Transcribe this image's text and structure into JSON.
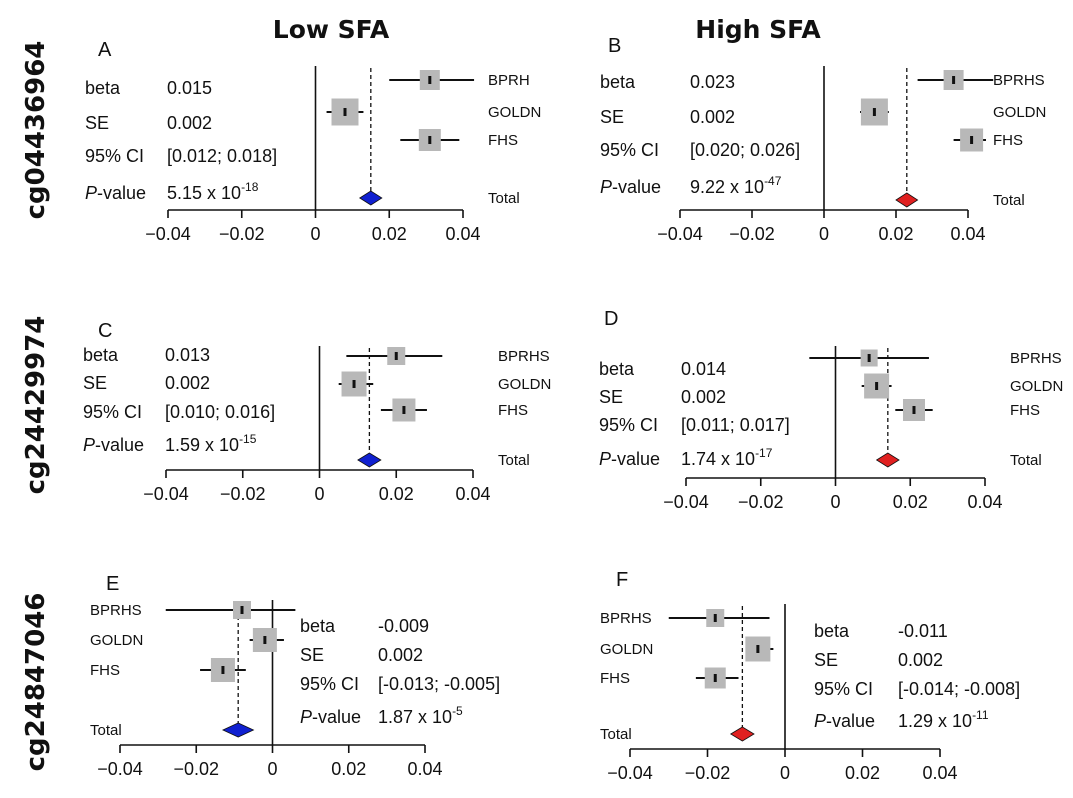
{
  "column_titles": [
    "Low SFA",
    "High SFA"
  ],
  "row_labels": [
    "cg04436964",
    "cg24429974",
    "cg24847046"
  ],
  "stat_labels": {
    "beta": "beta",
    "se": "SE",
    "ci": "95% CI",
    "p_italic": "P",
    "p_rest": "-value"
  },
  "colors": {
    "low_sfa_diamond": "#1020d0",
    "high_sfa_diamond": "#e02020",
    "study_box": "#b8b8b8"
  },
  "chart_data": [
    {
      "type": "forest",
      "panel": "A",
      "condition": "Low SFA",
      "cpg": "cg04436964",
      "xlim": [
        -0.04,
        0.04
      ],
      "xticks": [
        -0.04,
        -0.02,
        0,
        0.02,
        0.04
      ],
      "tick_labels": [
        "−0.04",
        "−0.02",
        "0",
        "0.02",
        "0.04"
      ],
      "studies": [
        {
          "name": "BPRH",
          "est": 0.031,
          "lo": 0.02,
          "hi": 0.043,
          "weight": 0.8
        },
        {
          "name": "GOLDN",
          "est": 0.008,
          "lo": 0.003,
          "hi": 0.013,
          "weight": 1.5
        },
        {
          "name": "FHS",
          "est": 0.031,
          "lo": 0.023,
          "hi": 0.039,
          "weight": 1.0
        }
      ],
      "total": {
        "name": "Total",
        "est": 0.015,
        "lo": 0.012,
        "hi": 0.018
      },
      "stats": {
        "beta": "0.015",
        "se": "0.002",
        "ci": "[0.012; 0.018]",
        "p_base": "5.15 x 10",
        "p_exp": "-18"
      }
    },
    {
      "type": "forest",
      "panel": "B",
      "condition": "High SFA",
      "cpg": "cg04436964",
      "xlim": [
        -0.04,
        0.04
      ],
      "xticks": [
        -0.04,
        -0.02,
        0,
        0.02,
        0.04
      ],
      "tick_labels": [
        "−0.04",
        "−0.02",
        "0",
        "0.02",
        "0.04"
      ],
      "studies": [
        {
          "name": "BPRHS",
          "est": 0.036,
          "lo": 0.026,
          "hi": 0.047,
          "weight": 0.8
        },
        {
          "name": "GOLDN",
          "est": 0.014,
          "lo": 0.01,
          "hi": 0.018,
          "weight": 1.5
        },
        {
          "name": "FHS",
          "est": 0.041,
          "lo": 0.036,
          "hi": 0.045,
          "weight": 1.1
        }
      ],
      "total": {
        "name": "Total",
        "est": 0.023,
        "lo": 0.02,
        "hi": 0.026
      },
      "stats": {
        "beta": "0.023",
        "se": "0.002",
        "ci": "[0.020; 0.026]",
        "p_base": "9.22 x 10",
        "p_exp": "-47"
      }
    },
    {
      "type": "forest",
      "panel": "C",
      "condition": "Low SFA",
      "cpg": "cg24429974",
      "xlim": [
        -0.04,
        0.04
      ],
      "xticks": [
        -0.04,
        -0.02,
        0,
        0.02,
        0.04
      ],
      "tick_labels": [
        "−0.04",
        "−0.02",
        "0",
        "0.02",
        "0.04"
      ],
      "studies": [
        {
          "name": "BPRHS",
          "est": 0.02,
          "lo": 0.007,
          "hi": 0.032,
          "weight": 0.6
        },
        {
          "name": "GOLDN",
          "est": 0.009,
          "lo": 0.005,
          "hi": 0.014,
          "weight": 1.3
        },
        {
          "name": "FHS",
          "est": 0.022,
          "lo": 0.016,
          "hi": 0.028,
          "weight": 1.1
        }
      ],
      "total": {
        "name": "Total",
        "est": 0.013,
        "lo": 0.01,
        "hi": 0.016
      },
      "stats": {
        "beta": "0.013",
        "se": "0.002",
        "ci": "[0.010; 0.016]",
        "p_base": "1.59 x 10",
        "p_exp": "-15"
      }
    },
    {
      "type": "forest",
      "panel": "D",
      "condition": "High SFA",
      "cpg": "cg24429974",
      "xlim": [
        -0.04,
        0.04
      ],
      "xticks": [
        -0.04,
        -0.02,
        0,
        0.02,
        0.04
      ],
      "tick_labels": [
        "−0.04",
        "−0.02",
        "0",
        "0.02",
        "0.04"
      ],
      "studies": [
        {
          "name": "BPRHS",
          "est": 0.009,
          "lo": -0.007,
          "hi": 0.025,
          "weight": 0.5
        },
        {
          "name": "GOLDN",
          "est": 0.011,
          "lo": 0.007,
          "hi": 0.015,
          "weight": 1.3
        },
        {
          "name": "FHS",
          "est": 0.021,
          "lo": 0.016,
          "hi": 0.026,
          "weight": 1.0
        }
      ],
      "total": {
        "name": "Total",
        "est": 0.014,
        "lo": 0.011,
        "hi": 0.017
      },
      "stats": {
        "beta": "0.014",
        "se": "0.002",
        "ci": "[0.011; 0.017]",
        "p_base": "1.74 x 10",
        "p_exp": "-17"
      }
    },
    {
      "type": "forest",
      "panel": "E",
      "condition": "Low SFA",
      "cpg": "cg24847046",
      "xlim": [
        -0.04,
        0.04
      ],
      "xticks": [
        -0.04,
        -0.02,
        0,
        0.02,
        0.04
      ],
      "tick_labels": [
        "−0.04",
        "−0.02",
        "0",
        "0.02",
        "0.04"
      ],
      "studies": [
        {
          "name": "BPRHS",
          "est": -0.008,
          "lo": -0.028,
          "hi": 0.006,
          "weight": 0.6
        },
        {
          "name": "GOLDN",
          "est": -0.002,
          "lo": -0.006,
          "hi": 0.003,
          "weight": 1.2
        },
        {
          "name": "FHS",
          "est": -0.013,
          "lo": -0.019,
          "hi": -0.007,
          "weight": 1.2
        }
      ],
      "total": {
        "name": "Total",
        "est": -0.009,
        "lo": -0.013,
        "hi": -0.005
      },
      "stats": {
        "beta": "-0.009",
        "se": "0.002",
        "ci": "[-0.013; -0.005]",
        "p_base": "1.87 x 10",
        "p_exp": "-5"
      }
    },
    {
      "type": "forest",
      "panel": "F",
      "condition": "High SFA",
      "cpg": "cg24847046",
      "xlim": [
        -0.04,
        0.04
      ],
      "xticks": [
        -0.04,
        -0.02,
        0,
        0.02,
        0.04
      ],
      "tick_labels": [
        "−0.04",
        "−0.02",
        "0",
        "0.02",
        "0.04"
      ],
      "studies": [
        {
          "name": "BPRHS",
          "est": -0.018,
          "lo": -0.03,
          "hi": -0.004,
          "weight": 0.6
        },
        {
          "name": "GOLDN",
          "est": -0.007,
          "lo": -0.01,
          "hi": -0.003,
          "weight": 1.3
        },
        {
          "name": "FHS",
          "est": -0.018,
          "lo": -0.023,
          "hi": -0.012,
          "weight": 0.9
        }
      ],
      "total": {
        "name": "Total",
        "est": -0.011,
        "lo": -0.014,
        "hi": -0.008
      },
      "stats": {
        "beta": "-0.011",
        "se": "0.002",
        "ci": "[-0.014; -0.008]",
        "p_base": "1.29 x 10",
        "p_exp": "-11"
      }
    }
  ]
}
